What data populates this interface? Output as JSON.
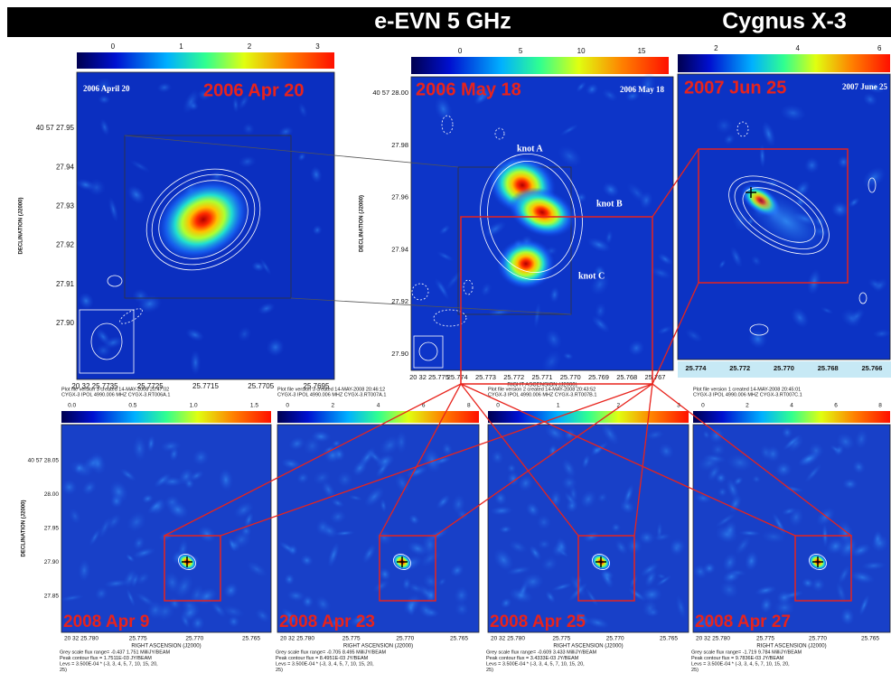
{
  "header": {
    "title": "e-EVN 5 GHz",
    "source": "Cygnus X-3"
  },
  "top_panels": [
    {
      "date_label": "2006 Apr 20",
      "inner_label": "2006 April 20",
      "colorbar_ticks": [
        "0",
        "1",
        "2",
        "3"
      ],
      "y_ticks": [
        "40 57 27.95",
        "27.94",
        "27.93",
        "27.92",
        "27.91",
        "27.90"
      ],
      "y_axis_label": "DECLINATION (J2000)",
      "x_ticks": [
        "20 32 25.7735",
        "25.7725",
        "25.7715",
        "25.7705",
        "25.7695"
      ]
    },
    {
      "date_label": "2006 May 18",
      "inner_label": "2006 May 18",
      "colorbar_ticks": [
        "0",
        "5",
        "10",
        "15"
      ],
      "y_ticks": [
        "40 57 28.00",
        "27.98",
        "27.96",
        "27.94",
        "27.92",
        "27.90"
      ],
      "y_axis_label": "DECLINATION (J2000)",
      "x_ticks": [
        "20 32 25.775",
        "25.774",
        "25.773",
        "25.772",
        "25.771",
        "25.770",
        "25.769",
        "25.768",
        "25.767"
      ],
      "x_axis_label": "RIGHT ASCENSION (J2000)",
      "knots": [
        "knot A",
        "knot B",
        "knot C"
      ]
    },
    {
      "date_label": "2007 Jun 25",
      "inner_label": "2007 June 25",
      "colorbar_ticks": [
        "2",
        "4",
        "6"
      ],
      "x_ticks": [
        "25.774",
        "25.772",
        "25.770",
        "25.768",
        "25.766"
      ]
    }
  ],
  "bottom_panels": [
    {
      "date_label": "2008 Apr 9",
      "plot_header": [
        "Plot file version 3  created 14-MAY-2008 20:47:02",
        "CYGX-3  IPOL  4990.006 MHZ  CYGX-3.RT006A.1"
      ],
      "colorbar_ticks": [
        "0.0",
        "0.5",
        "1.0",
        "1.5"
      ],
      "y_ticks": [
        "40 57 28.05",
        "28.00",
        "27.95",
        "27.90",
        "27.85"
      ],
      "y_axis_label": "DECLINATION (J2000)",
      "x_ticks": [
        "20 32 25.780",
        "25.775",
        "25.770",
        "25.765"
      ],
      "x_axis_label": "RIGHT ASCENSION (J2000)",
      "footer": [
        "Grey scale flux range= -0.437 1.751 MilliJY/BEAM",
        "Peak contour flux = 1.7511E-03 JY/BEAM",
        "Levs = 3.500E-04 * (-3, 3, 4, 5, 7, 10, 15, 20,",
        "25)"
      ]
    },
    {
      "date_label": "2008 Apr 23",
      "plot_header": [
        "Plot file version 3  created 14-MAY-2008 20:46:12",
        "CYGX-3  IPOL  4990.006 MHZ  CYGX-3.RT007A.1"
      ],
      "colorbar_ticks": [
        "0",
        "2",
        "4",
        "6",
        "8"
      ],
      "x_ticks": [
        "20 32 25.780",
        "25.775",
        "25.770",
        "25.765"
      ],
      "x_axis_label": "RIGHT ASCENSION (J2000)",
      "footer": [
        "Grey scale flux range= -0.705 8.495 MilliJY/BEAM",
        "Peak contour flux = 8.4951E-03 JY/BEAM",
        "Levs = 3.500E-04 * (-3, 3, 4, 5, 7, 10, 15, 20,",
        "25)"
      ]
    },
    {
      "date_label": "2008 Apr 25",
      "plot_header": [
        "Plot file version 2  created 14-MAY-2008 20:43:52",
        "CYGX-3  IPOL  4990.006 MHZ  CYGX-3.RT007B.1"
      ],
      "colorbar_ticks": [
        "0",
        "1",
        "2",
        "3"
      ],
      "x_ticks": [
        "20 32 25.780",
        "25.775",
        "25.770",
        "25.765"
      ],
      "x_axis_label": "RIGHT ASCENSION (J2000)",
      "footer": [
        "Grey scale flux range= -0.609 3.433 MilliJY/BEAM",
        "Peak contour flux = 3.4333E-03 JY/BEAM",
        "Levs = 3.500E-04 * (-3, 3, 4, 5, 7, 10, 15, 20,",
        "25)"
      ]
    },
    {
      "date_label": "2008 Apr 27",
      "plot_header": [
        "Plot file version 1  created 14-MAY-2008 20:45:01",
        "CYGX-3  IPOL  4990.006 MHZ  CYGX-3.RT007C.1"
      ],
      "colorbar_ticks": [
        "0",
        "2",
        "4",
        "6",
        "8"
      ],
      "x_ticks": [
        "20 32 25.780",
        "25.775",
        "25.770",
        "25.765"
      ],
      "x_axis_label": "RIGHT ASCENSION (J2000)",
      "footer": [
        "Grey scale flux range= -1.719 9.784 MilliJY/BEAM",
        "Peak contour flux = 9.7836E-03 JY/BEAM",
        "Levs = 3.500E-04 * (-3, 3, 4, 5, 7, 10, 15, 20,",
        "25)"
      ]
    }
  ]
}
